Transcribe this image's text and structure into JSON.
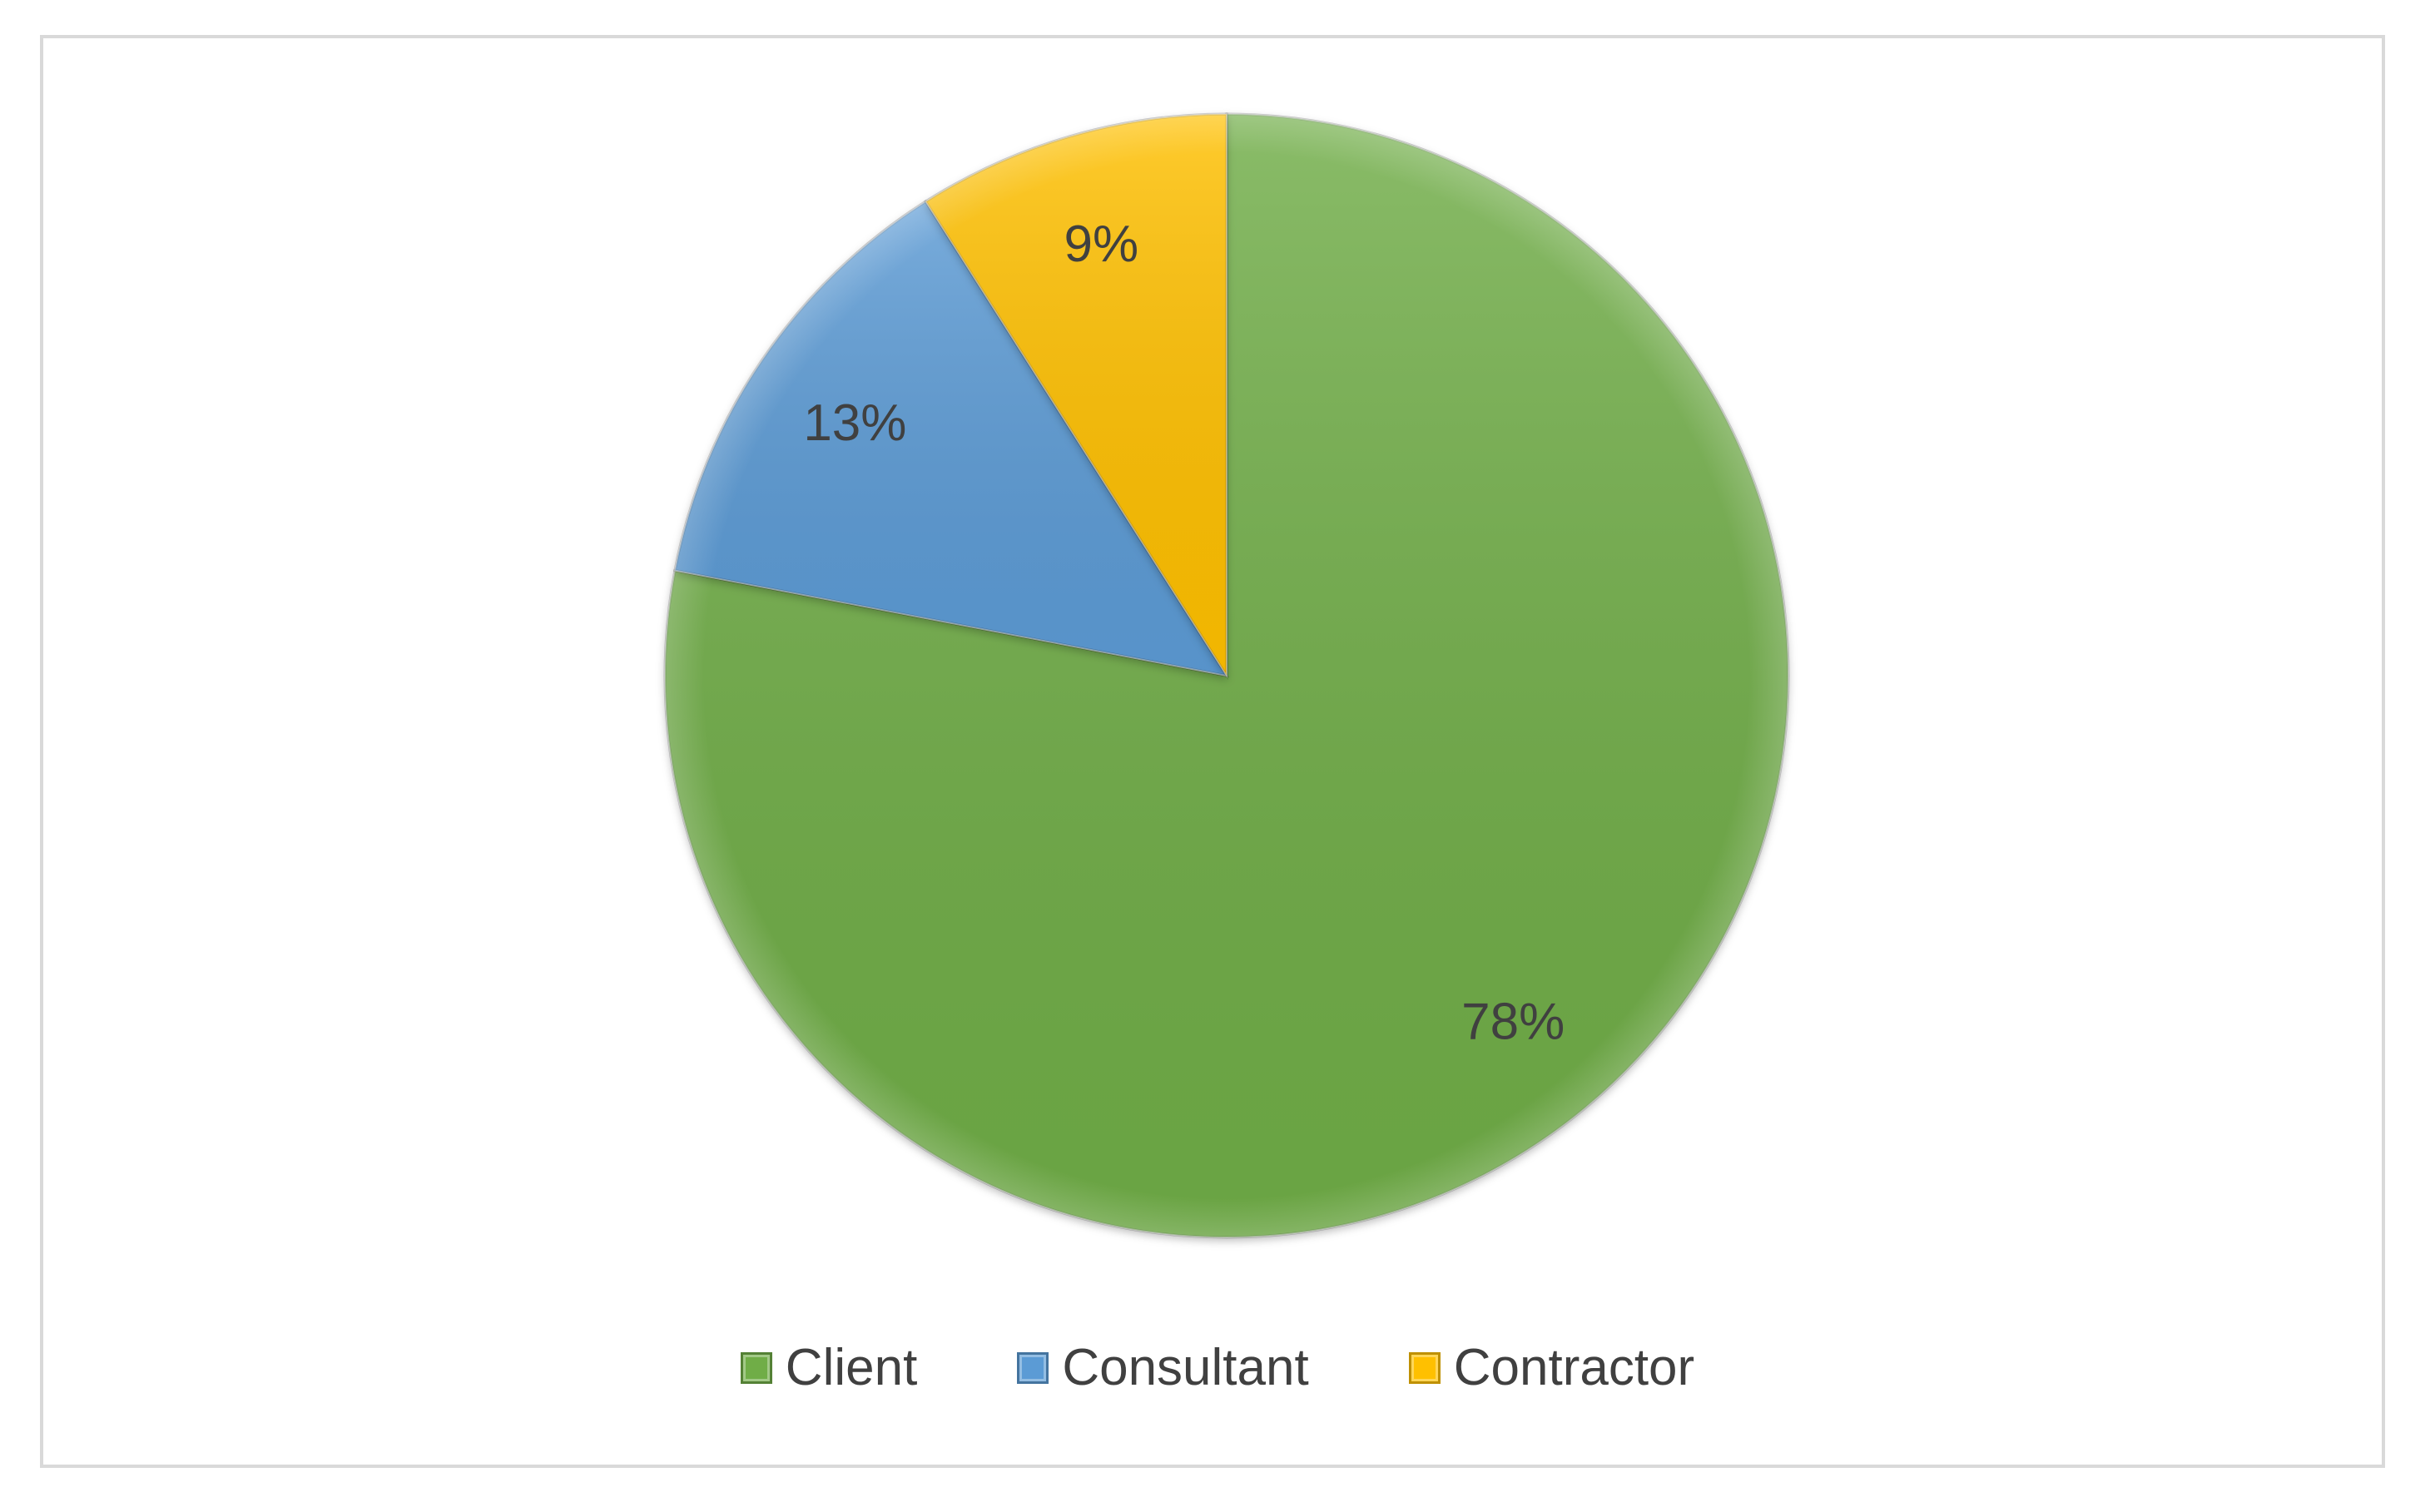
{
  "chart_data": {
    "type": "pie",
    "categories": [
      "Client",
      "Consultant",
      "Contractor"
    ],
    "values": [
      78,
      13,
      9
    ],
    "data_labels": [
      "78%",
      "13%",
      "9%"
    ],
    "colors": [
      "#70ad47",
      "#5b9bd5",
      "#ffc000"
    ],
    "title": "",
    "legend_position": "bottom",
    "start_angle_deg": 0,
    "direction": "clockwise"
  }
}
